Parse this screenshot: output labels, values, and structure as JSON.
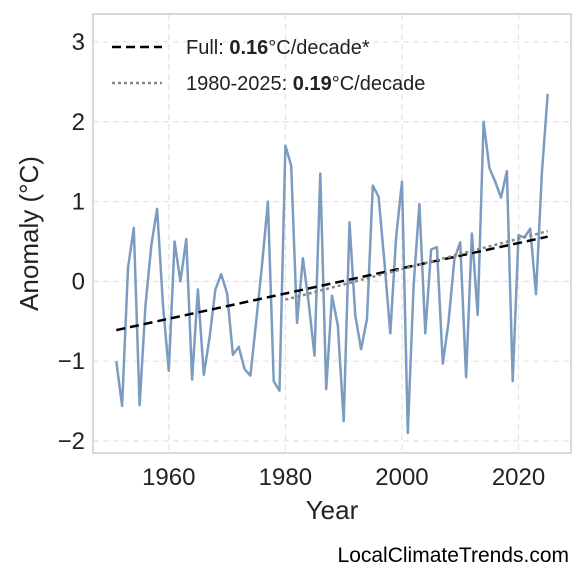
{
  "chart_data": {
    "type": "line",
    "xlabel": "Year",
    "ylabel": "Anomaly (°C)",
    "xlim": [
      1947,
      2029
    ],
    "ylim": [
      -2.15,
      3.35
    ],
    "xticks": [
      1960,
      1980,
      2000,
      2020
    ],
    "yticks": [
      3,
      2,
      1,
      0,
      -1,
      -2
    ],
    "ytick_labels": [
      "3",
      "2",
      "1",
      "0",
      "−1",
      "−2"
    ],
    "grid": true,
    "legend_position": "top-left",
    "series": [
      {
        "role": "data",
        "color": "#7b9cc0",
        "x": [
          1951,
          1952,
          1953,
          1954,
          1955,
          1956,
          1957,
          1958,
          1959,
          1960,
          1961,
          1962,
          1963,
          1964,
          1965,
          1966,
          1967,
          1968,
          1969,
          1970,
          1971,
          1972,
          1973,
          1974,
          1975,
          1976,
          1977,
          1978,
          1979,
          1980,
          1981,
          1982,
          1983,
          1984,
          1985,
          1986,
          1987,
          1988,
          1989,
          1990,
          1991,
          1992,
          1993,
          1994,
          1995,
          1996,
          1997,
          1998,
          1999,
          2000,
          2001,
          2002,
          2003,
          2004,
          2005,
          2006,
          2007,
          2008,
          2009,
          2010,
          2011,
          2012,
          2013,
          2014,
          2015,
          2016,
          2017,
          2018,
          2019,
          2020,
          2021,
          2022,
          2023,
          2024,
          2025
        ],
        "y": [
          -1.0,
          -1.56,
          0.17,
          0.67,
          -1.55,
          -0.3,
          0.45,
          0.91,
          -0.3,
          -1.12,
          0.5,
          0.0,
          0.53,
          -1.23,
          -0.1,
          -1.17,
          -0.7,
          -0.1,
          0.09,
          -0.15,
          -0.92,
          -0.82,
          -1.1,
          -1.18,
          -0.5,
          0.2,
          1.0,
          -1.25,
          -1.37,
          1.7,
          1.45,
          -0.52,
          0.29,
          -0.27,
          -0.93,
          1.35,
          -1.35,
          -0.18,
          -0.55,
          -1.75,
          0.74,
          -0.43,
          -0.85,
          -0.47,
          1.2,
          1.06,
          0.23,
          -0.65,
          0.55,
          1.25,
          -1.9,
          -0.05,
          0.97,
          -0.65,
          0.4,
          0.43,
          -1.03,
          -0.5,
          0.28,
          0.49,
          -1.2,
          0.6,
          -0.42,
          2.0,
          1.42,
          1.25,
          1.05,
          1.38,
          -1.25,
          0.58,
          0.55,
          0.66,
          -0.16,
          1.36,
          2.35
        ]
      },
      {
        "role": "trend",
        "style": "dashed",
        "color": "#000000",
        "x": [
          1951,
          2025
        ],
        "y": [
          -0.61,
          0.56
        ],
        "legend_prefix": "Full: ",
        "legend_value": "0.16",
        "legend_suffix": "°C/decade*"
      },
      {
        "role": "trend",
        "style": "dotted",
        "color": "#888888",
        "x": [
          1980,
          2025
        ],
        "y": [
          -0.23,
          0.63
        ],
        "legend_prefix": "1980-2025: ",
        "legend_value": "0.19",
        "legend_suffix": "°C/decade"
      }
    ]
  },
  "watermark": "LocalClimateTrends.com"
}
